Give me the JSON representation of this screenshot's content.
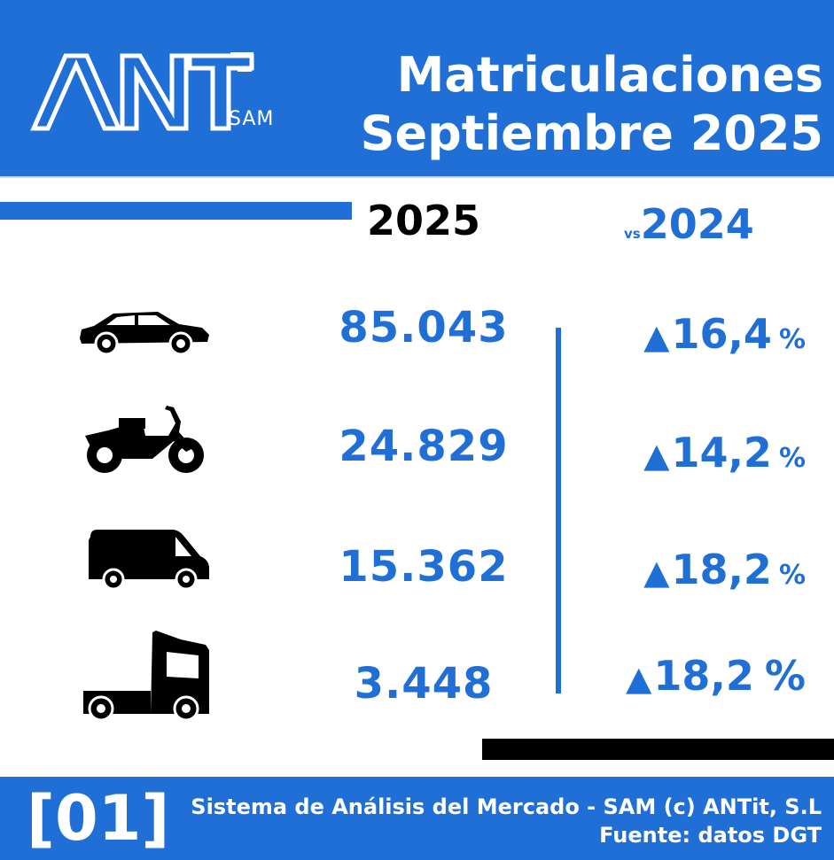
{
  "header": {
    "logo_text": "ANT",
    "logo_sub": "SAM",
    "title_line1": "Matriculaciones",
    "title_line2": "Septiembre 2025"
  },
  "columns": {
    "current_year": "2025",
    "compare_prefix": "vs",
    "compare_year": "2024"
  },
  "rows": [
    {
      "icon": "car-icon",
      "value": "85.043",
      "change_arrow": "▲",
      "change": "16,4",
      "unit": "%"
    },
    {
      "icon": "motorcycle-icon",
      "value": "24.829",
      "change_arrow": "▲",
      "change": "14,2",
      "unit": "%"
    },
    {
      "icon": "van-icon",
      "value": "15.362",
      "change_arrow": "▲",
      "change": "18,2",
      "unit": "%"
    },
    {
      "icon": "truck-icon",
      "value": "3.448",
      "change_arrow": "▲",
      "change": "18,2",
      "unit": "%"
    }
  ],
  "footer": {
    "code": "[01]",
    "line1": "Sistema de Análisis del Mercado - SAM (c) ANTit, S.L",
    "line2": "Fuente: datos DGT"
  },
  "colors": {
    "brand_blue": "#1f6fd6",
    "black": "#000000",
    "white": "#ffffff"
  }
}
